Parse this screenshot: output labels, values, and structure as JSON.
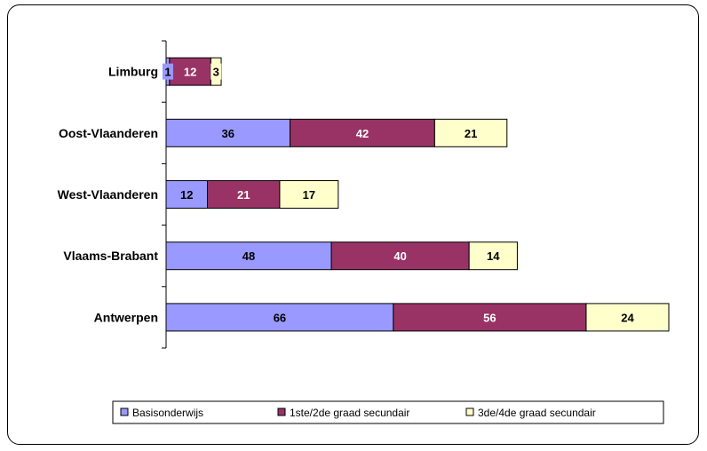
{
  "chart_data": {
    "type": "bar",
    "orientation": "horizontal",
    "stacked": true,
    "categories": [
      "Limburg",
      "Oost-Vlaanderen",
      "West-Vlaanderen",
      "Vlaams-Brabant",
      "Antwerpen"
    ],
    "series": [
      {
        "name": "Basisonderwijs",
        "color": "#9999ff",
        "values": [
          1,
          36,
          12,
          48,
          66
        ]
      },
      {
        "name": "1ste/2de graad secundair",
        "color": "#993366",
        "values": [
          12,
          42,
          21,
          40,
          56
        ]
      },
      {
        "name": "3de/4de graad secundair",
        "color": "#ffffcc",
        "values": [
          3,
          21,
          17,
          14,
          24
        ]
      }
    ],
    "xlim": [
      0,
      146
    ],
    "grid": false,
    "legend_position": "bottom"
  }
}
